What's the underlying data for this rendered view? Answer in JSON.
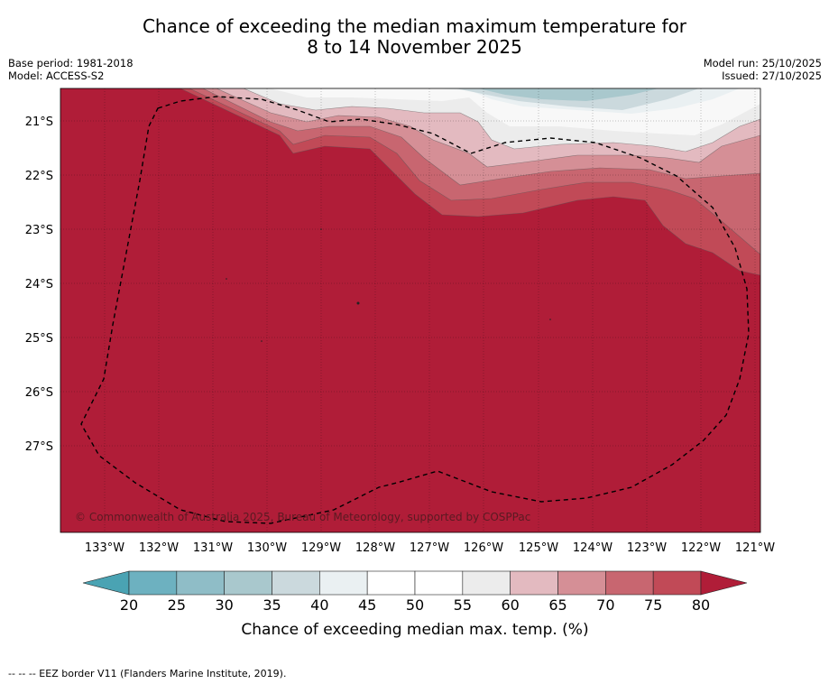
{
  "title_line1": "Chance of exceeding the median maximum temperature for",
  "title_line2": "8 to 14 November 2025",
  "meta_left": {
    "base_period": "Base period: 1981-2018",
    "model": "Model: ACCESS-S2"
  },
  "meta_right": {
    "model_run": "Model run: 25/10/2025",
    "issued": "Issued: 27/10/2025"
  },
  "map": {
    "lon_labels": [
      "133°W",
      "132°W",
      "131°W",
      "130°W",
      "129°W",
      "128°W",
      "127°W",
      "126°W",
      "125°W",
      "124°W",
      "123°W",
      "122°W",
      "121°W"
    ],
    "lat_labels": [
      "21°S",
      "22°S",
      "23°S",
      "24°S",
      "25°S",
      "26°S",
      "27°S"
    ],
    "copyright": "© Commonwealth of Australia 2025, Bureau of Meteorology, supported by COSPPac",
    "dominant_category": "80+"
  },
  "colorbar": {
    "ticks": [
      "20",
      "25",
      "30",
      "35",
      "40",
      "45",
      "50",
      "55",
      "60",
      "65",
      "70",
      "75",
      "80"
    ],
    "colors": [
      "#4aa3b3",
      "#6db1c0",
      "#8fbdc7",
      "#a9c8cd",
      "#cbd9dd",
      "#eaf0f2",
      "#ffffff",
      "#ffffff",
      "#ececec",
      "#e3bac0",
      "#d58f96",
      "#c86670",
      "#c14a57",
      "#b01d38"
    ],
    "title": "Chance of exceeding median max. temp. (%)"
  },
  "footnote": "--  --  -- EEZ border V11 (Flanders Marine Institute, 2019)."
}
